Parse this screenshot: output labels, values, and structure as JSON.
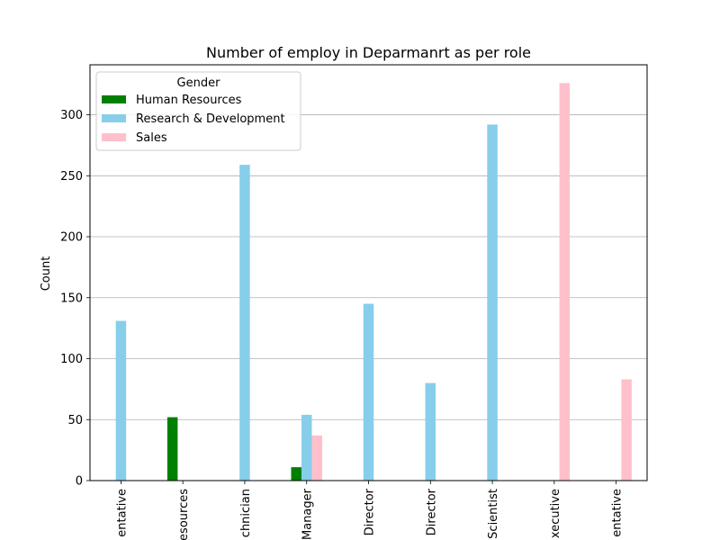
{
  "chart_data": {
    "type": "bar",
    "title": "Number of employ in Deparmanrt as per role",
    "xlabel": "",
    "ylabel": "Count",
    "categories": [
      "Healthcare Representative",
      "Human Resources",
      "Laboratory Technician",
      "Manager",
      "Manufacturing Director",
      "Research Director",
      "Research Scientist",
      "Sales Executive",
      "Sales Representative"
    ],
    "category_labels_visible": [
      "entative",
      "esources",
      "chnician",
      "Manager",
      "Director",
      "Director",
      "Scientist",
      "xecutive",
      "entative"
    ],
    "series": [
      {
        "name": "Human Resources",
        "color": "#008000",
        "values": [
          0,
          52,
          0,
          11,
          0,
          0,
          0,
          0,
          0
        ]
      },
      {
        "name": "Research & Development",
        "color": "#87ceeb",
        "values": [
          131,
          0,
          259,
          54,
          145,
          80,
          292,
          0,
          0
        ]
      },
      {
        "name": "Sales",
        "color": "#ffc0cb",
        "values": [
          0,
          0,
          0,
          37,
          0,
          0,
          0,
          326,
          83
        ]
      }
    ],
    "ylim": [
      0,
      341
    ],
    "yticks": [
      0,
      50,
      100,
      150,
      200,
      250,
      300
    ],
    "grid": "y",
    "legend": {
      "title": "Gender",
      "placement": "top-left"
    }
  }
}
